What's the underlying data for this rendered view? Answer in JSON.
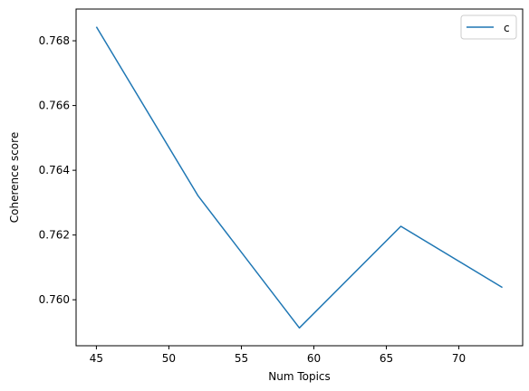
{
  "chart_data": {
    "type": "line",
    "title": "",
    "xlabel": "Num Topics",
    "ylabel": "Coherence score",
    "x": [
      45,
      52,
      59,
      66,
      73
    ],
    "series": [
      {
        "name": "c",
        "color": "#1f77b4",
        "values": [
          0.76843,
          0.76322,
          0.75913,
          0.76227,
          0.76038
        ]
      }
    ],
    "xlim": [
      43.6,
      74.4
    ],
    "ylim": [
      0.75858,
      0.76898
    ],
    "xticks": [
      45,
      50,
      55,
      60,
      65,
      70
    ],
    "xtick_labels": [
      "45",
      "50",
      "55",
      "60",
      "65",
      "70"
    ],
    "yticks": [
      0.76,
      0.762,
      0.764,
      0.766,
      0.768
    ],
    "ytick_labels": [
      "0.760",
      "0.762",
      "0.764",
      "0.766",
      "0.768"
    ],
    "grid": false,
    "legend_position": "top-right"
  }
}
